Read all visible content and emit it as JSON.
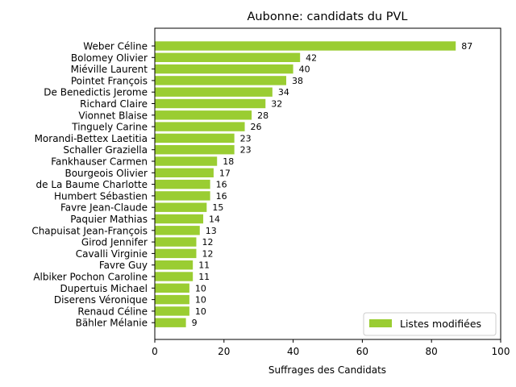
{
  "chart_data": {
    "type": "bar",
    "orientation": "horizontal",
    "title": "Aubonne: candidats du PVL",
    "xlabel": "Suffrages des Candidats",
    "ylabel": "",
    "xlim": [
      0,
      100
    ],
    "xticks": [
      "0",
      "20",
      "40",
      "60",
      "80",
      "100"
    ],
    "grid": false,
    "legend_position": "bottom-right",
    "categories": [
      "Weber Céline",
      "Bolomey Olivier",
      "Miéville Laurent",
      "Pointet François",
      "De Benedictis Jerome",
      "Richard Claire",
      "Vionnet Blaise",
      "Tinguely Carine",
      "Morandi-Bettex Laetitia",
      "Schaller Graziella",
      "Fankhauser Carmen",
      "Bourgeois Olivier",
      "de La Baume Charlotte",
      "Humbert Sébastien",
      "Favre Jean-Claude",
      "Paquier Mathias",
      "Chapuisat Jean-François",
      "Girod Jennifer",
      "Cavalli Virginie",
      "Favre Guy",
      "Albiker Pochon Caroline",
      "Dupertuis Michael",
      "Diserens Véronique",
      "Renaud Céline",
      "Bähler Mélanie"
    ],
    "series": [
      {
        "name": "Listes modifiées",
        "color": "#9acd32",
        "values": [
          87,
          42,
          40,
          38,
          34,
          32,
          28,
          26,
          23,
          23,
          18,
          17,
          16,
          16,
          15,
          14,
          13,
          12,
          12,
          11,
          11,
          10,
          10,
          10,
          9
        ]
      }
    ]
  }
}
